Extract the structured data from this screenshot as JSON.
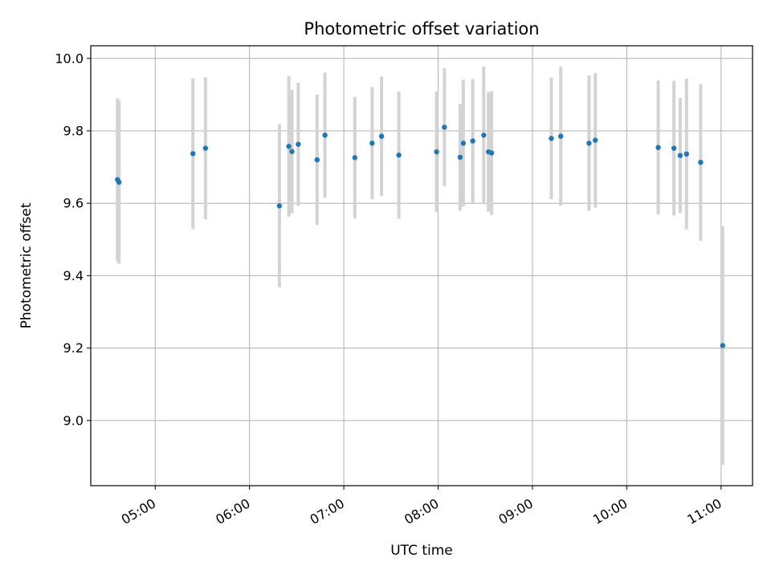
{
  "chart_data": {
    "type": "scatter",
    "title": "Photometric offset variation",
    "xlabel": "UTC time",
    "ylabel": "Photometric offset",
    "x_axis_type": "time",
    "xlim": [
      "04:19",
      "11:20"
    ],
    "ylim": [
      8.82,
      10.035
    ],
    "x_ticks": [
      "05:00",
      "06:00",
      "07:00",
      "08:00",
      "09:00",
      "10:00",
      "11:00"
    ],
    "y_ticks": [
      "9.0",
      "9.2",
      "9.4",
      "9.6",
      "9.8",
      "10.0"
    ],
    "grid": true,
    "marker_color": "#1f77b4",
    "errorbar_color": "#d3d3d3",
    "series": [
      {
        "points": [
          {
            "x": "04:36",
            "y": 9.665,
            "err": 0.225
          },
          {
            "x": "04:37",
            "y": 9.658,
            "err": 0.225
          },
          {
            "x": "05:24",
            "y": 9.737,
            "err": 0.208
          },
          {
            "x": "05:32",
            "y": 9.752,
            "err": 0.196
          },
          {
            "x": "06:19",
            "y": 9.593,
            "err": 0.225
          },
          {
            "x": "06:25",
            "y": 9.757,
            "err": 0.194
          },
          {
            "x": "06:27",
            "y": 9.743,
            "err": 0.17
          },
          {
            "x": "06:31",
            "y": 9.763,
            "err": 0.17
          },
          {
            "x": "06:43",
            "y": 9.72,
            "err": 0.18
          },
          {
            "x": "06:48",
            "y": 9.788,
            "err": 0.173
          },
          {
            "x": "07:07",
            "y": 9.726,
            "err": 0.168
          },
          {
            "x": "07:18",
            "y": 9.766,
            "err": 0.155
          },
          {
            "x": "07:24",
            "y": 9.785,
            "err": 0.165
          },
          {
            "x": "07:35",
            "y": 9.733,
            "err": 0.176
          },
          {
            "x": "07:59",
            "y": 9.742,
            "err": 0.167
          },
          {
            "x": "08:04",
            "y": 9.81,
            "err": 0.163
          },
          {
            "x": "08:14",
            "y": 9.727,
            "err": 0.147
          },
          {
            "x": "08:16",
            "y": 9.766,
            "err": 0.175
          },
          {
            "x": "08:22",
            "y": 9.772,
            "err": 0.171
          },
          {
            "x": "08:29",
            "y": 9.788,
            "err": 0.19
          },
          {
            "x": "08:32",
            "y": 9.742,
            "err": 0.165
          },
          {
            "x": "08:34",
            "y": 9.739,
            "err": 0.171
          },
          {
            "x": "09:12",
            "y": 9.779,
            "err": 0.168
          },
          {
            "x": "09:18",
            "y": 9.785,
            "err": 0.192
          },
          {
            "x": "09:36",
            "y": 9.766,
            "err": 0.187
          },
          {
            "x": "09:40",
            "y": 9.774,
            "err": 0.186
          },
          {
            "x": "10:20",
            "y": 9.754,
            "err": 0.185
          },
          {
            "x": "10:30",
            "y": 9.752,
            "err": 0.186
          },
          {
            "x": "10:34",
            "y": 9.732,
            "err": 0.159
          },
          {
            "x": "10:38",
            "y": 9.736,
            "err": 0.208
          },
          {
            "x": "10:47",
            "y": 9.713,
            "err": 0.217
          },
          {
            "x": "11:01",
            "y": 9.207,
            "err": 0.33
          }
        ]
      }
    ]
  }
}
